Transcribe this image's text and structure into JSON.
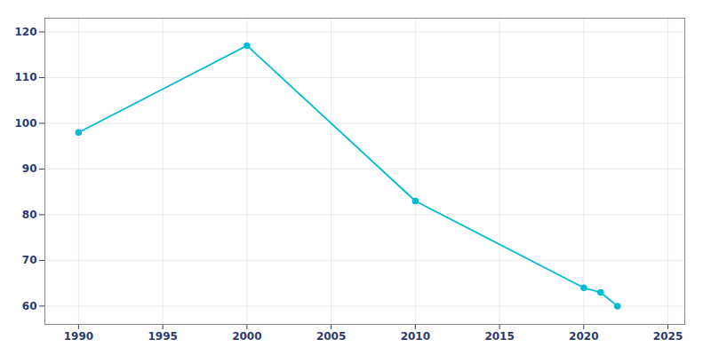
{
  "chart_data": {
    "type": "line",
    "x": [
      1990,
      2000,
      2010,
      2020,
      2021,
      2022
    ],
    "values": [
      98,
      117,
      83,
      64,
      63,
      60
    ],
    "color": "#00bcd4",
    "marker": "circle",
    "xlim": [
      1988,
      2026
    ],
    "ylim": [
      56,
      123
    ],
    "xticks": [
      1990,
      1995,
      2000,
      2005,
      2010,
      2015,
      2020,
      2025
    ],
    "yticks": [
      60,
      70,
      80,
      90,
      100,
      110,
      120
    ],
    "grid": true
  }
}
